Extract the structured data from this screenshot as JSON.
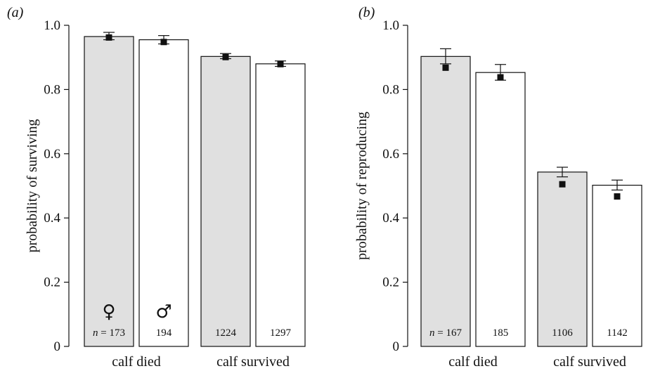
{
  "chart_data": [
    {
      "type": "bar",
      "panel_label": "(a)",
      "ylabel": "probability of surviving",
      "ylim": [
        0,
        1.0
      ],
      "yticks": [
        "0",
        "0.2",
        "0.4",
        "0.6",
        "0.8",
        "1.0"
      ],
      "ytick_values": [
        0,
        0.2,
        0.4,
        0.6,
        0.8,
        1.0
      ],
      "groups": [
        "calf died",
        "calf survived"
      ],
      "bars": [
        {
          "group": "calf died",
          "sex": "female",
          "fill": "#e0e0e0",
          "value": 0.965,
          "err_low": 0.955,
          "err_high": 0.978,
          "point": 0.962,
          "n_prefix": "n = ",
          "n": "173",
          "symbol": "♀"
        },
        {
          "group": "calf died",
          "sex": "male",
          "fill": "#ffffff",
          "value": 0.955,
          "err_low": 0.942,
          "err_high": 0.968,
          "point": 0.948,
          "n_prefix": "",
          "n": "194",
          "symbol": "♂"
        },
        {
          "group": "calf survived",
          "sex": "female",
          "fill": "#e0e0e0",
          "value": 0.903,
          "err_low": 0.896,
          "err_high": 0.912,
          "point": 0.901,
          "n_prefix": "",
          "n": "1224",
          "symbol": ""
        },
        {
          "group": "calf survived",
          "sex": "male",
          "fill": "#ffffff",
          "value": 0.88,
          "err_low": 0.872,
          "err_high": 0.889,
          "point": 0.879,
          "n_prefix": "",
          "n": "1297",
          "symbol": ""
        }
      ]
    },
    {
      "type": "bar",
      "panel_label": "(b)",
      "ylabel": "probability of reproducing",
      "ylim": [
        0,
        1.0
      ],
      "yticks": [
        "0",
        "0.2",
        "0.4",
        "0.6",
        "0.8",
        "1.0"
      ],
      "ytick_values": [
        0,
        0.2,
        0.4,
        0.6,
        0.8,
        1.0
      ],
      "groups": [
        "calf died",
        "calf survived"
      ],
      "bars": [
        {
          "group": "calf died",
          "sex": "female",
          "fill": "#e0e0e0",
          "value": 0.903,
          "err_low": 0.88,
          "err_high": 0.927,
          "point": 0.868,
          "n_prefix": "n = ",
          "n": "167",
          "symbol": ""
        },
        {
          "group": "calf died",
          "sex": "male",
          "fill": "#ffffff",
          "value": 0.853,
          "err_low": 0.829,
          "err_high": 0.878,
          "point": 0.838,
          "n_prefix": "",
          "n": "185",
          "symbol": ""
        },
        {
          "group": "calf survived",
          "sex": "female",
          "fill": "#e0e0e0",
          "value": 0.543,
          "err_low": 0.528,
          "err_high": 0.558,
          "point": 0.505,
          "n_prefix": "",
          "n": "1106",
          "symbol": ""
        },
        {
          "group": "calf survived",
          "sex": "male",
          "fill": "#ffffff",
          "value": 0.502,
          "err_low": 0.487,
          "err_high": 0.518,
          "point": 0.467,
          "n_prefix": "",
          "n": "1142",
          "symbol": ""
        }
      ]
    }
  ]
}
